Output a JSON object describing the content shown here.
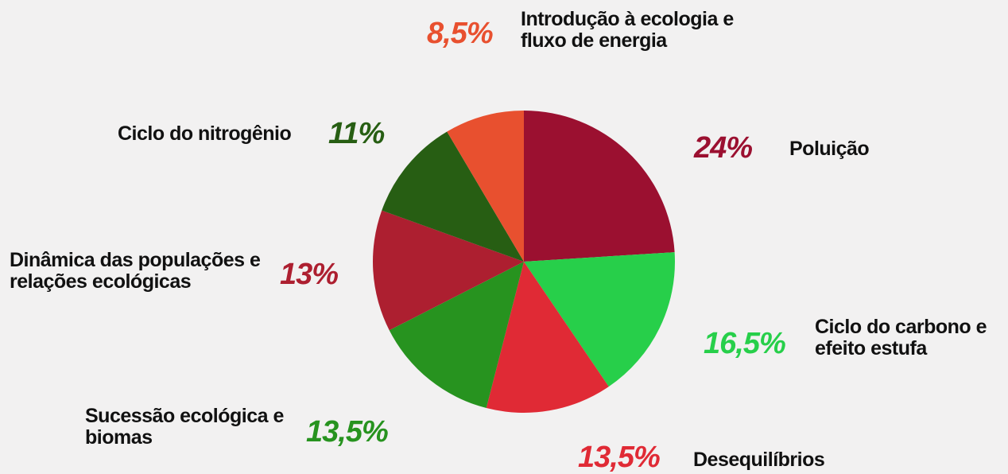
{
  "chart_data": {
    "type": "pie",
    "categories": [
      "Poluição",
      "Ciclo do carbono e efeito estufa",
      "Desequilíbrios",
      "Sucessão ecológica e biomas",
      "Dinâmica das populações e relações ecológicas",
      "Ciclo do nitrogênio",
      "Introdução à ecologia e fluxo de energia"
    ],
    "values": [
      24,
      16.5,
      13.5,
      13.5,
      13,
      11,
      8.5
    ],
    "value_labels": [
      "24%",
      "16,5%",
      "13,5%",
      "13,5%",
      "13%",
      "11%",
      "8,5%"
    ],
    "colors": [
      "#9b1030",
      "#27cf4a",
      "#e02a35",
      "#27931f",
      "#ad1f30",
      "#275e13",
      "#e8502f"
    ]
  }
}
